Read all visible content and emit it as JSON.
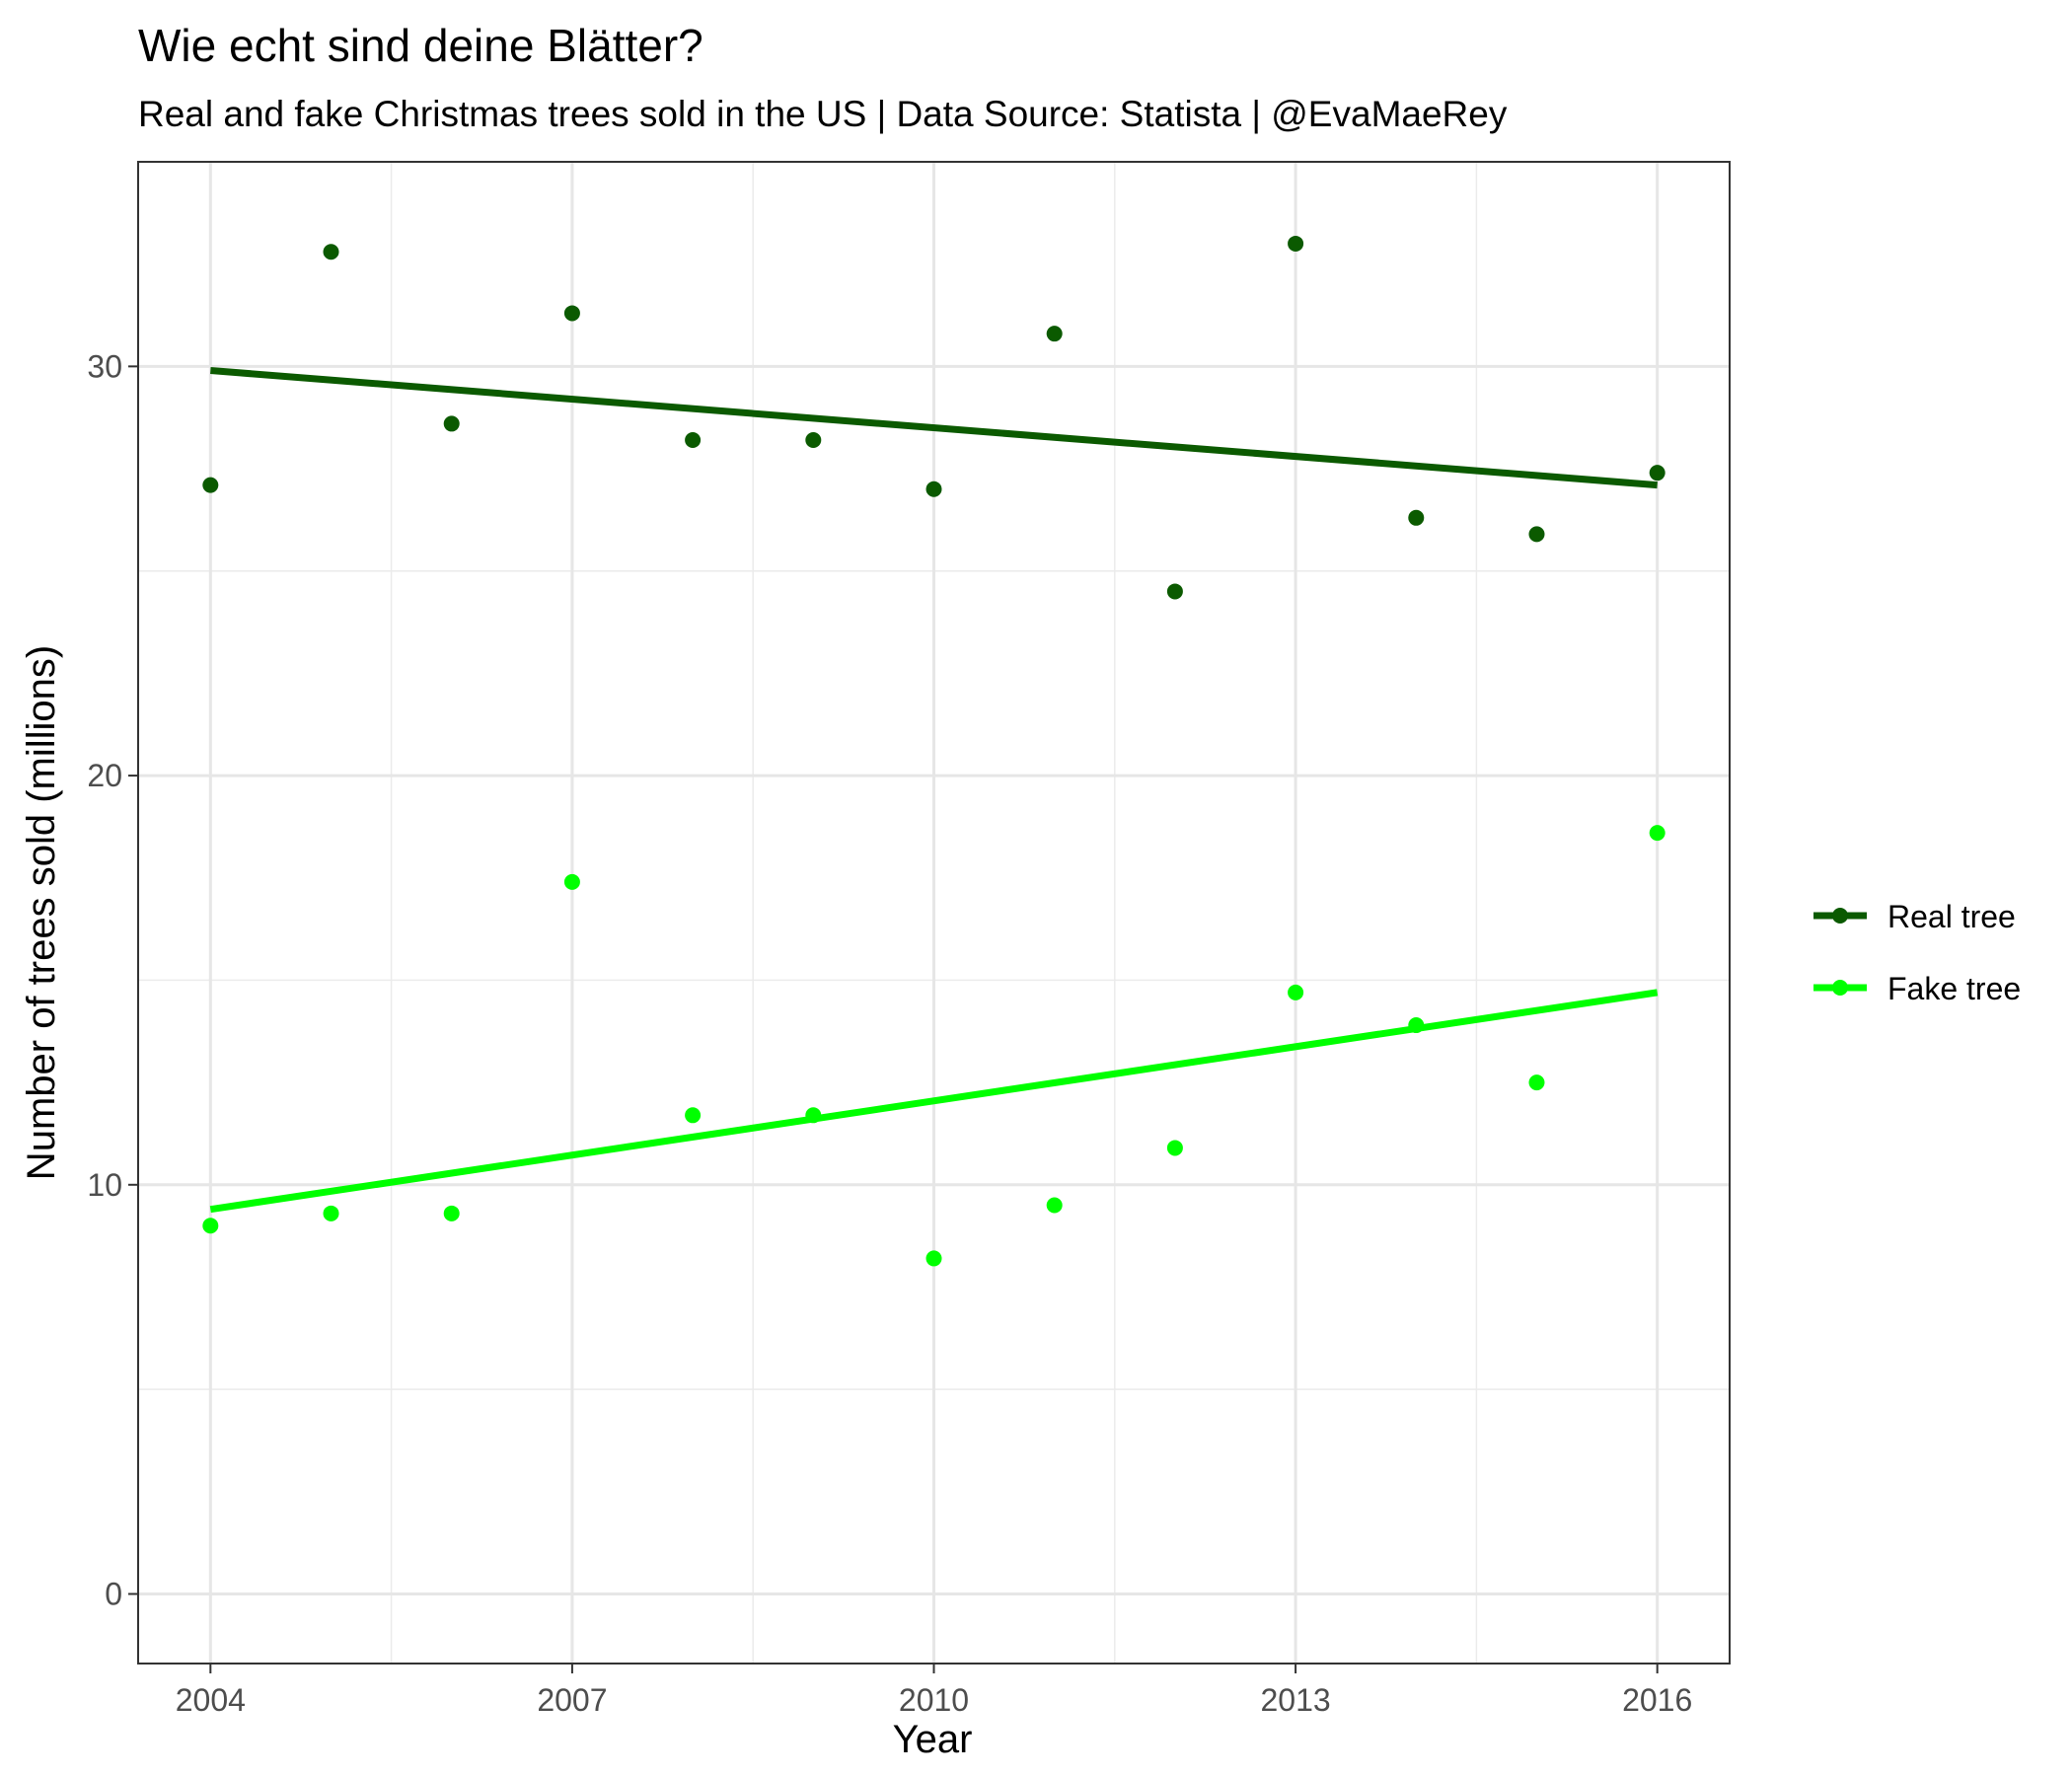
{
  "chart_data": {
    "type": "scatter",
    "title": "Wie echt sind deine Blätter?",
    "subtitle": "Real and fake Christmas trees sold in the US | Data Source: Statista | @EvaMaeRey",
    "xlabel": "Year",
    "ylabel": "Number of trees sold (millions)",
    "xlim": [
      2003.4,
      2016.6
    ],
    "ylim": [
      -1.7,
      35.0
    ],
    "x_ticks": [
      2004,
      2007,
      2010,
      2013,
      2016
    ],
    "y_ticks": [
      0,
      10,
      20,
      30
    ],
    "x_minor": [
      2005.5,
      2008.5,
      2011.5,
      2014.5
    ],
    "y_minor": [
      5,
      15,
      25,
      35
    ],
    "grid": true,
    "legend_position": "right",
    "x": [
      2004,
      2005,
      2006,
      2007,
      2008,
      2009,
      2010,
      2011,
      2012,
      2013,
      2014,
      2015,
      2016
    ],
    "series": [
      {
        "name": "Real tree",
        "color": "#0B5A00",
        "values": [
          27.1,
          32.8,
          28.6,
          31.3,
          28.2,
          28.2,
          27.0,
          30.8,
          24.5,
          33.0,
          26.3,
          25.9,
          27.4
        ],
        "trend": [
          29.9,
          27.1
        ]
      },
      {
        "name": "Fake tree",
        "color": "#00FF00",
        "values": [
          9.0,
          9.3,
          9.3,
          17.4,
          11.7,
          11.7,
          8.2,
          9.5,
          10.9,
          14.7,
          13.9,
          12.5,
          18.6
        ],
        "trend": [
          9.4,
          14.7
        ]
      }
    ]
  }
}
